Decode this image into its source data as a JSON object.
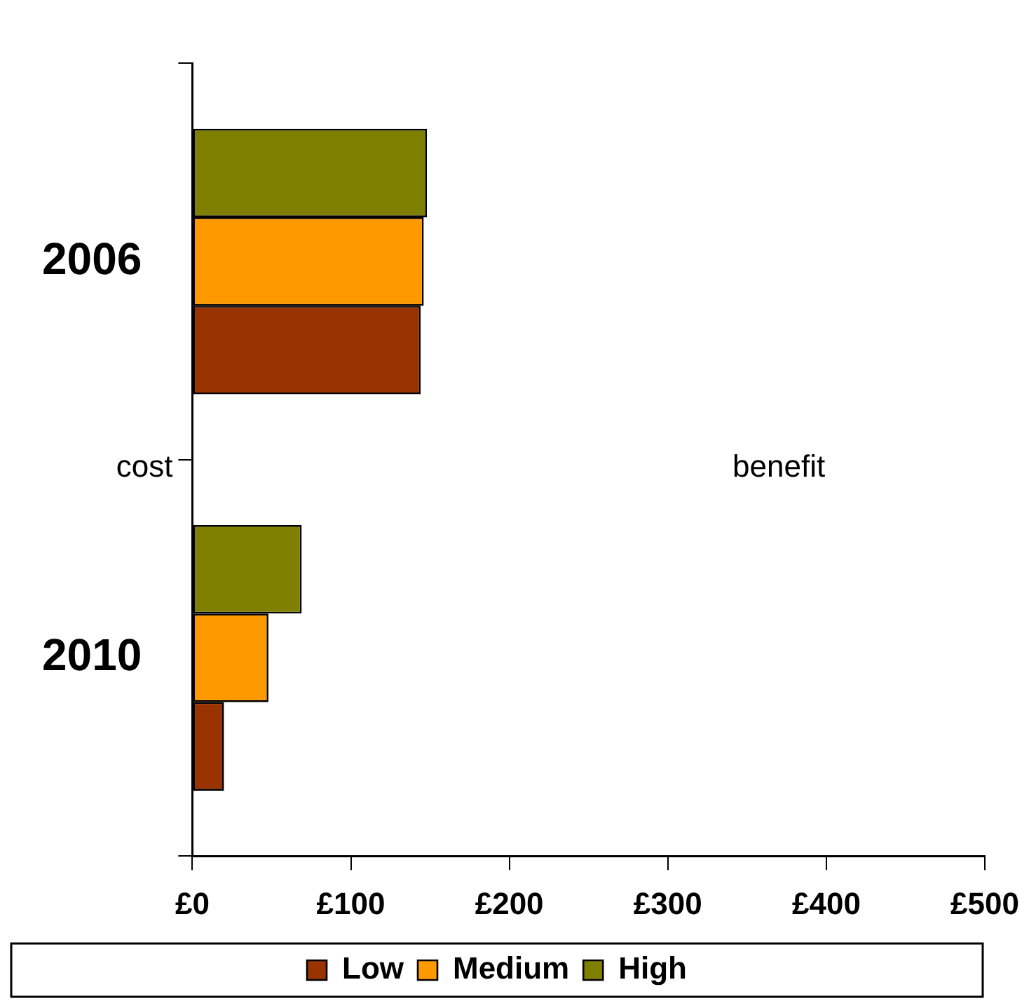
{
  "chart_data": {
    "type": "bar",
    "orientation": "horizontal",
    "categories": [
      "2006",
      "2010"
    ],
    "series": [
      {
        "name": "Low",
        "color": "#993300",
        "values": [
          144,
          20
        ]
      },
      {
        "name": "Medium",
        "color": "#ff9900",
        "values": [
          146,
          48
        ]
      },
      {
        "name": "High",
        "color": "#808000",
        "values": [
          148,
          69
        ]
      }
    ],
    "xlim": [
      0,
      500
    ],
    "xticks": [
      {
        "value": 0,
        "label": "£0"
      },
      {
        "value": 100,
        "label": "£100"
      },
      {
        "value": 200,
        "label": "£200"
      },
      {
        "value": 300,
        "label": "£300"
      },
      {
        "value": 400,
        "label": "£400"
      },
      {
        "value": 500,
        "label": "£500"
      }
    ],
    "annotations": [
      "cost",
      "benefit"
    ],
    "grid": false,
    "legend": "bottom"
  }
}
